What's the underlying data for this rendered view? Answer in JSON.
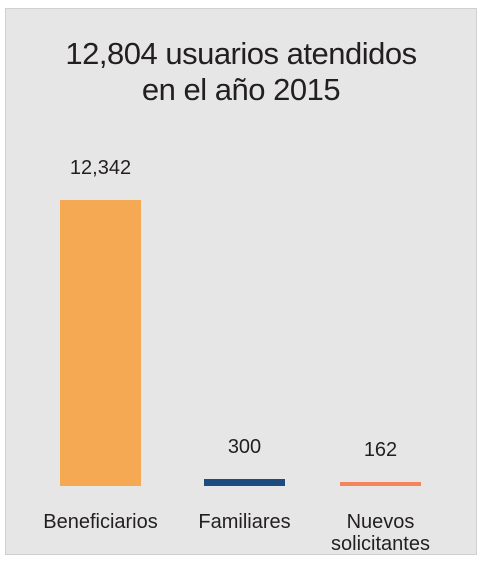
{
  "chart_data": {
    "type": "bar",
    "title": [
      "12,804 usuarios atendidos",
      "en el año 2015"
    ],
    "categories": [
      "Beneficiarios",
      "Familiares",
      "Nuevos solicitantes"
    ],
    "values": [
      12342,
      300,
      162
    ],
    "value_labels": [
      "12,342",
      "300",
      "162"
    ],
    "colors": [
      "#f5a952",
      "#1d4b7d",
      "#f4845a"
    ]
  }
}
